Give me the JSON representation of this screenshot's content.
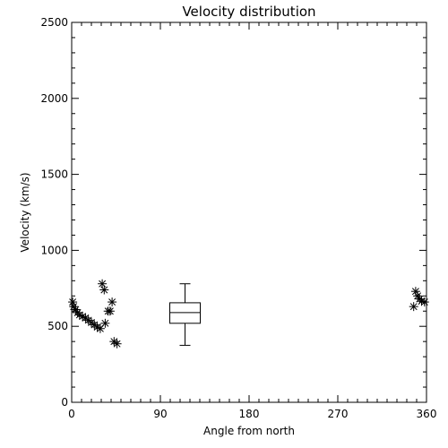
{
  "chart_data": {
    "type": "scatter",
    "title": "Velocity distribution",
    "xlabel": "Angle from north",
    "ylabel": "Velocity (km/s)",
    "xlim": [
      0,
      360
    ],
    "ylim": [
      0,
      2500
    ],
    "xticks": [
      0,
      90,
      180,
      270,
      360
    ],
    "yticks": [
      0,
      500,
      1000,
      1500,
      2000,
      2500
    ],
    "grid": false,
    "marker": "asterisk",
    "color": "#000000",
    "points": [
      [
        1,
        660
      ],
      [
        2,
        630
      ],
      [
        4,
        610
      ],
      [
        6,
        590
      ],
      [
        8,
        575
      ],
      [
        11,
        565
      ],
      [
        14,
        555
      ],
      [
        17,
        540
      ],
      [
        20,
        525
      ],
      [
        23,
        510
      ],
      [
        26,
        495
      ],
      [
        29,
        485
      ],
      [
        31,
        780
      ],
      [
        33,
        740
      ],
      [
        34,
        520
      ],
      [
        37,
        600
      ],
      [
        39,
        600
      ],
      [
        41,
        660
      ],
      [
        43,
        400
      ],
      [
        46,
        385
      ],
      [
        347,
        630
      ],
      [
        349,
        730
      ],
      [
        351,
        700
      ],
      [
        353,
        680
      ],
      [
        355,
        665
      ],
      [
        358,
        660
      ]
    ],
    "boxplot": {
      "x": 115,
      "whisker_low": 375,
      "q1": 520,
      "median": 590,
      "q3": 655,
      "whisker_high": 780
    }
  }
}
